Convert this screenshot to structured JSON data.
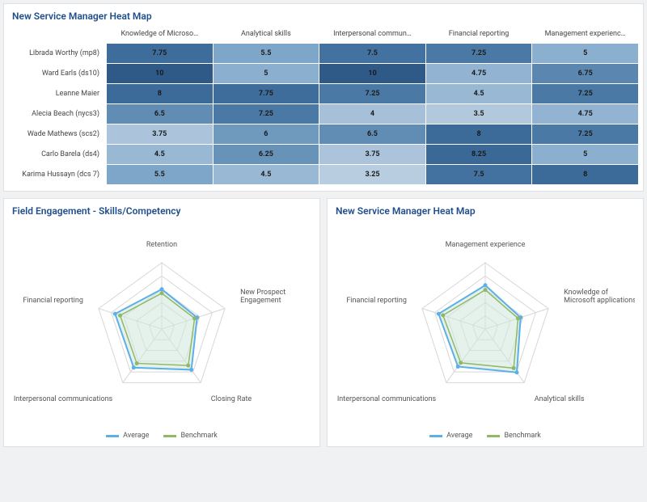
{
  "heatmap": {
    "title": "New Service Manager Heat Map",
    "columns": [
      "Knowledge of Microso…",
      "Analytical skills",
      "Interpersonal commun…",
      "Financial reporting",
      "Management experienc…"
    ],
    "rows": [
      {
        "label": "Librada Worthy (mp8)",
        "values": [
          7.75,
          5.5,
          7.5,
          7.25,
          5
        ]
      },
      {
        "label": "Ward Earls (ds10)",
        "values": [
          10,
          5,
          10,
          4.75,
          6.75
        ]
      },
      {
        "label": "Leanne Maier",
        "values": [
          8,
          7.75,
          7.25,
          4.5,
          7.25
        ]
      },
      {
        "label": "Alecia Beach (nycs3)",
        "values": [
          6.5,
          7.25,
          4,
          3.5,
          4.75
        ]
      },
      {
        "label": "Wade Mathews (scs2)",
        "values": [
          3.75,
          6,
          6.5,
          8,
          7.25
        ]
      },
      {
        "label": "Carlo Barela (ds4)",
        "values": [
          4.5,
          6.25,
          3.75,
          8.25,
          5
        ]
      },
      {
        "label": "Karima Hussayn (dcs 7)",
        "values": [
          5.5,
          4.5,
          3.25,
          7.5,
          8
        ]
      }
    ],
    "color_scale": {
      "min": 3.25,
      "max": 10,
      "low_color": "#b8cde0",
      "mid_color": "#7fa7c9",
      "high_color": "#3e6d9c",
      "deep_color": "#2f5a87"
    },
    "cell_text_color": "#1a1a1a",
    "header_font_size": 9,
    "cell_font_size": 9
  },
  "radar_left": {
    "title": "Field Engagement - Skills/Competency",
    "axes": [
      "Retention",
      "New Prospect Engagement",
      "Closing Rate",
      "Interpersonal communications",
      "Financial reporting"
    ],
    "max": 10,
    "rings": 5,
    "series": [
      {
        "name": "Average",
        "color": "#5bb0e8",
        "fill": "#cfe6da",
        "fill_opacity": 0.55,
        "stroke_width": 2,
        "values": [
          6.0,
          5.6,
          7.6,
          7.2,
          7.4
        ]
      },
      {
        "name": "Benchmark",
        "color": "#8fb867",
        "fill": "none",
        "fill_opacity": 0,
        "stroke_width": 1.5,
        "values": [
          5.4,
          5.2,
          6.8,
          6.4,
          6.6
        ]
      }
    ],
    "grid_color": "#d7d7d7",
    "label_font_size": 9
  },
  "radar_right": {
    "title": "New Service Manager Heat Map",
    "axes": [
      "Management experience",
      "Knowledge of Microsoft applications",
      "Analytical skills",
      "Interpersonal communications",
      "Financial reporting"
    ],
    "max": 10,
    "rings": 5,
    "series": [
      {
        "name": "Average",
        "color": "#5bb0e8",
        "fill": "#cfe6da",
        "fill_opacity": 0.55,
        "stroke_width": 2,
        "values": [
          6.6,
          5.6,
          8.1,
          7.0,
          7.4
        ]
      },
      {
        "name": "Benchmark",
        "color": "#8fb867",
        "fill": "none",
        "fill_opacity": 0,
        "stroke_width": 1.5,
        "values": [
          5.9,
          5.2,
          7.3,
          6.3,
          6.7
        ]
      }
    ],
    "grid_color": "#d7d7d7",
    "label_font_size": 9
  },
  "legend_labels": {
    "avg": "Average",
    "bench": "Benchmark"
  }
}
